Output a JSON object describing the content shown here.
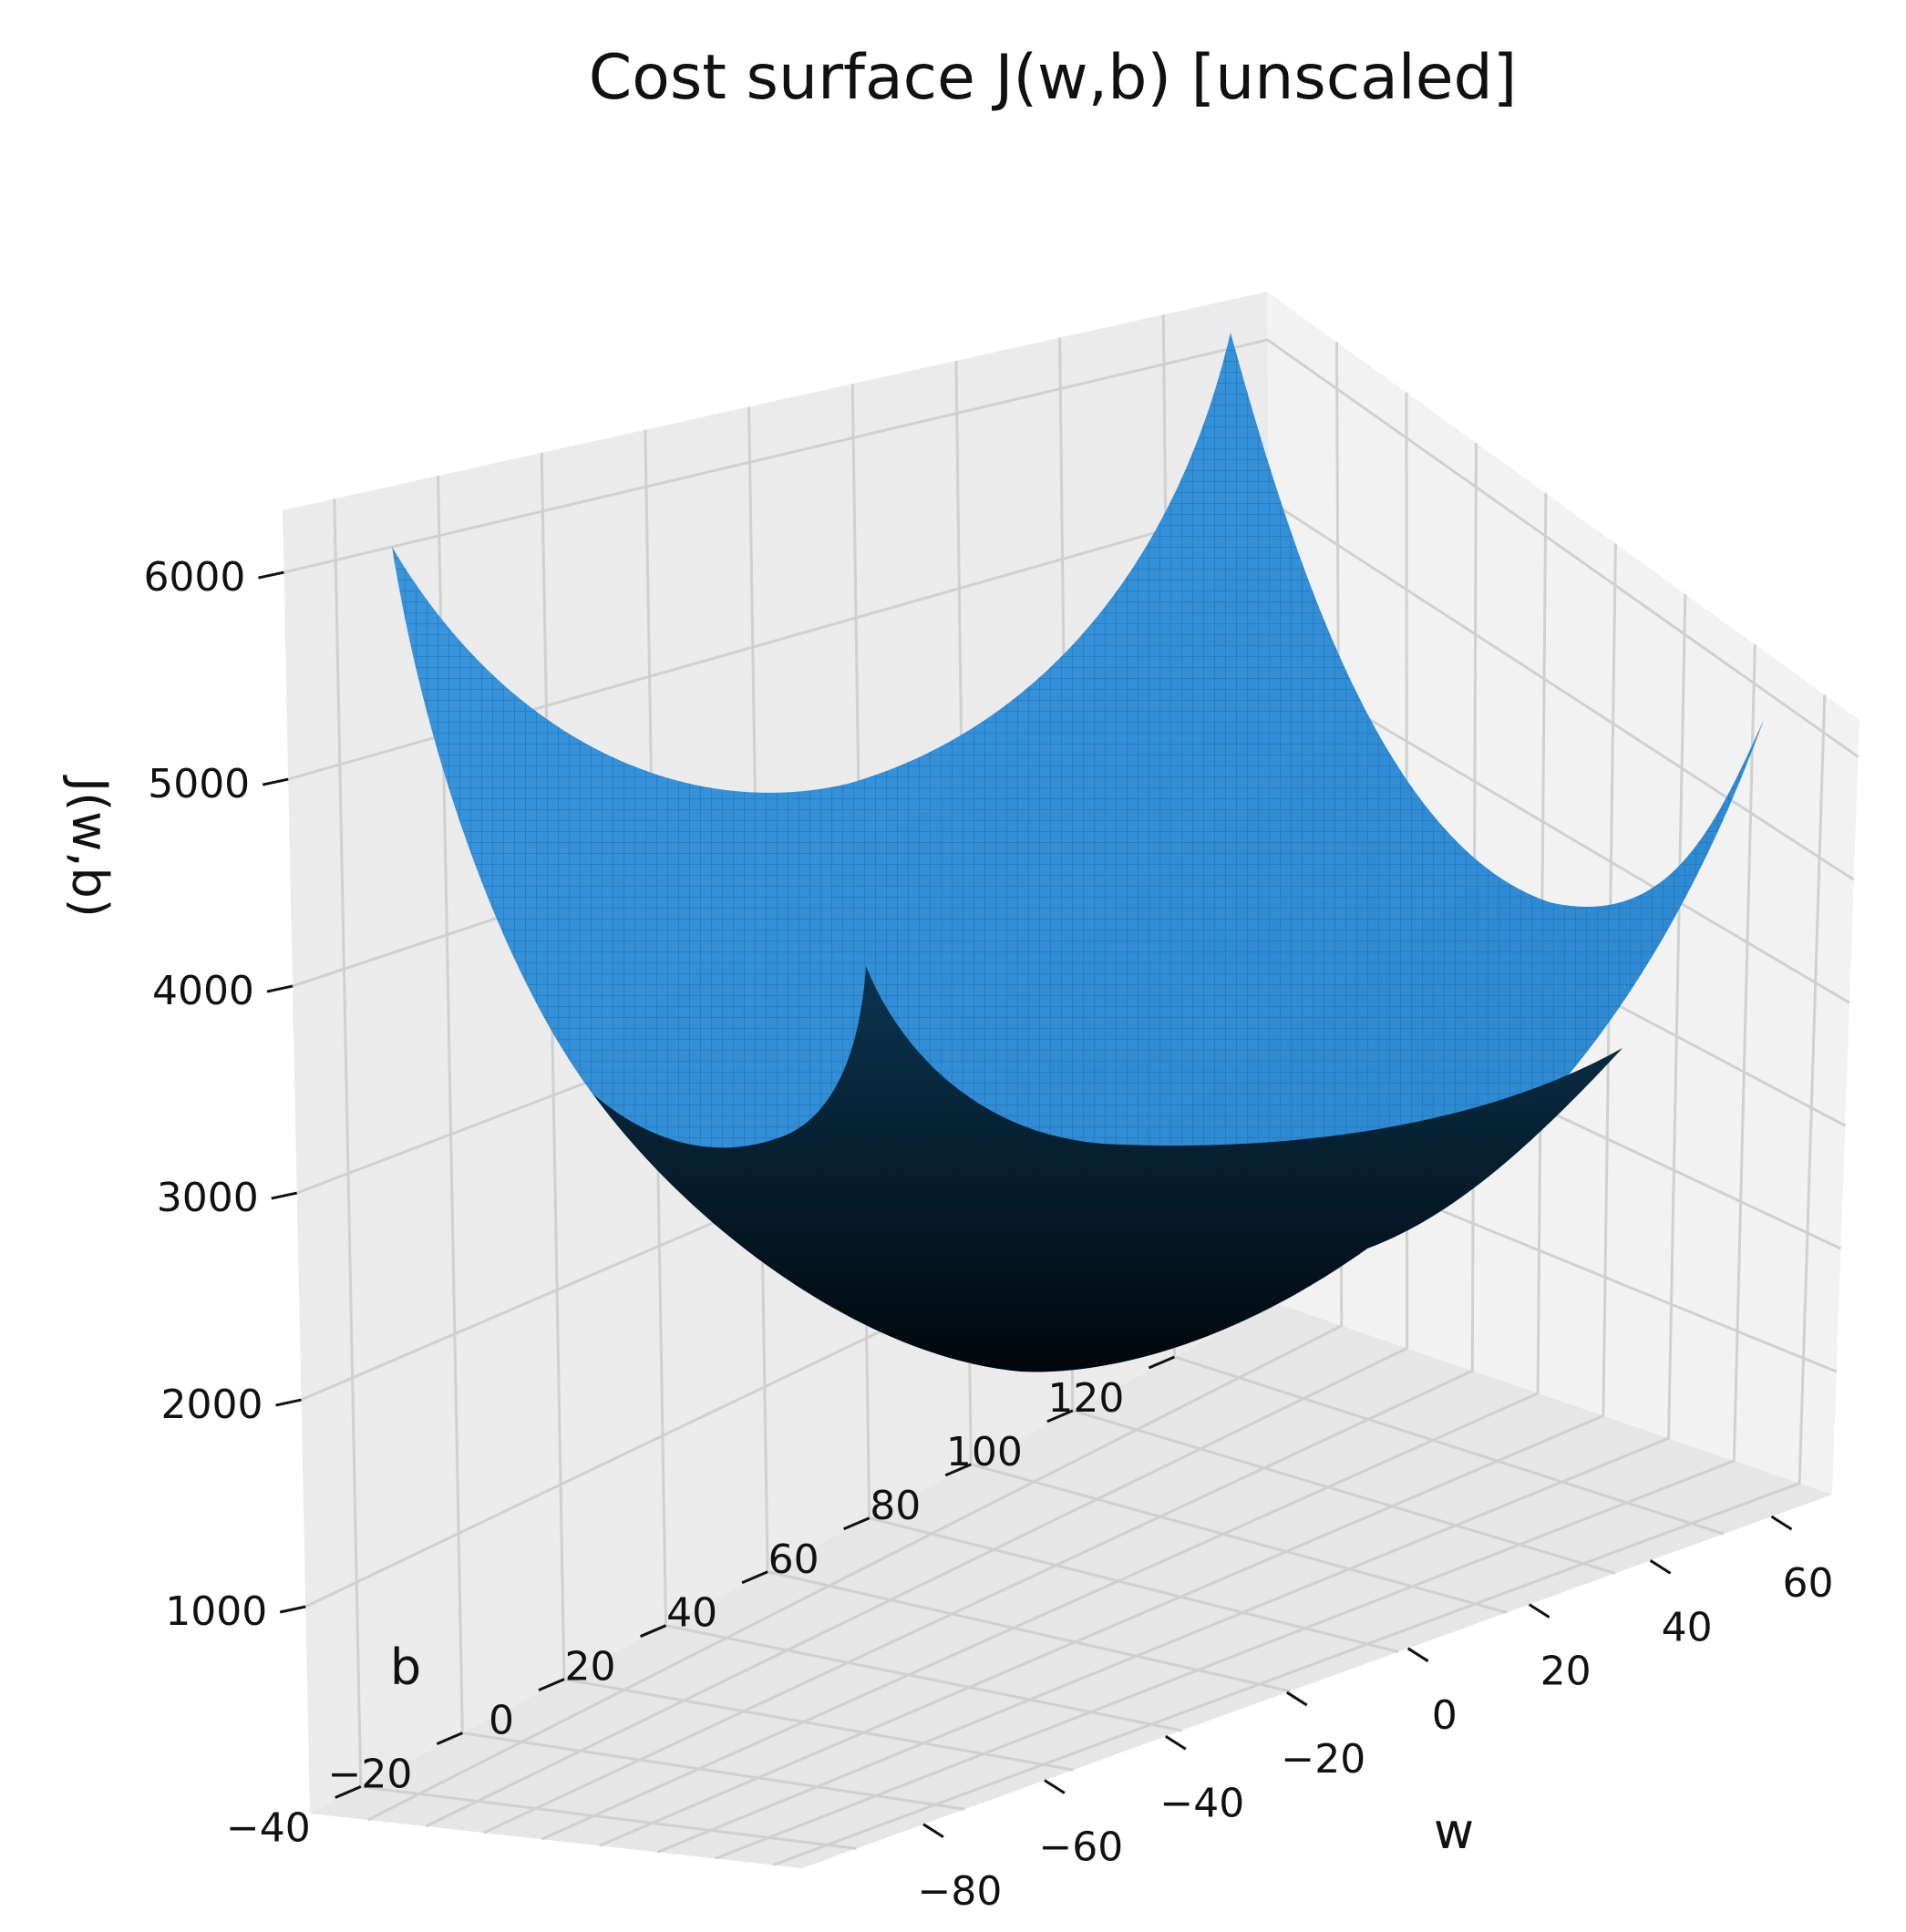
{
  "chart_data": {
    "type": "surface",
    "title": "Cost surface J(w,b)  [unscaled]",
    "xlabel": "w",
    "ylabel": "b",
    "zlabel": "J(w,b)",
    "xticks": [
      -80,
      -60,
      -40,
      -20,
      0,
      20,
      40,
      60
    ],
    "yticks": [
      -40,
      -20,
      0,
      20,
      40,
      60,
      80,
      100,
      120
    ],
    "zticks": [
      1000,
      2000,
      3000,
      4000,
      5000,
      6000
    ],
    "xlim": [
      -100,
      70
    ],
    "ylim": [
      -50,
      140
    ],
    "zlim": [
      0,
      6300
    ],
    "surface": {
      "w_range": [
        -100,
        70
      ],
      "b_range": [
        -50,
        140
      ],
      "corner_values": {
        "w_min_b_min": 2600,
        "w_min_b_max": 6300,
        "w_max_b_max": 6100,
        "w_max_b_min": 4200
      },
      "minimum": {
        "w": -15,
        "b": 45,
        "J": 0
      }
    },
    "colors": {
      "surface": "#2f8dd8",
      "surface_shadow": "#041522",
      "pane": "#f2f2f2",
      "grid": "#d0d0d0"
    },
    "grid": true
  }
}
